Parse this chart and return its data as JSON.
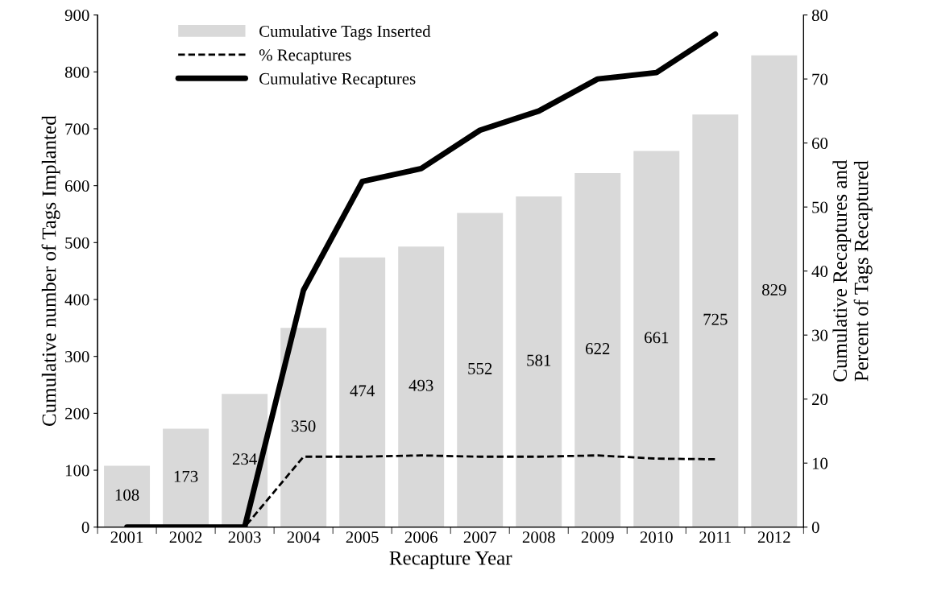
{
  "chart_data": {
    "type": "bar",
    "xlabel": "Recapture Year",
    "ylabel": "Cumulative number of Tags Implanted",
    "y2label": "Cumulative Recaptures and\nPercent of Tags Recaptured",
    "categories": [
      "2001",
      "2002",
      "2003",
      "2004",
      "2005",
      "2006",
      "2007",
      "2008",
      "2009",
      "2010",
      "2011",
      "2012"
    ],
    "series": [
      {
        "name": "Cumulative Tags Inserted",
        "color": "#d9d9d9",
        "values": [
          108,
          173,
          234,
          350,
          474,
          493,
          552,
          581,
          622,
          661,
          725,
          829
        ],
        "value_labels": [
          "108",
          "173",
          "234",
          "350",
          "474",
          "493",
          "552",
          "581",
          "622",
          "661",
          "725",
          "829"
        ]
      },
      {
        "name": "% Recaptures",
        "type": "line",
        "axis": "y2",
        "line_style": "dashed",
        "color": "#000000",
        "values": [
          0,
          0,
          0,
          11,
          11,
          11.2,
          11,
          11,
          11.2,
          10.7,
          10.6,
          null
        ]
      },
      {
        "name": "Cumulative Recaptures",
        "type": "line",
        "axis": "y2",
        "line_style": "solid",
        "color": "#000000",
        "values": [
          0,
          0,
          0,
          37,
          54,
          56,
          62,
          65,
          70,
          71,
          77,
          null
        ]
      }
    ],
    "ylim": [
      0,
      900
    ],
    "yticks": [
      0,
      100,
      200,
      300,
      400,
      500,
      600,
      700,
      800,
      900
    ],
    "y2lim": [
      0,
      80
    ],
    "y2ticks": [
      0,
      10,
      20,
      30,
      40,
      50,
      60,
      70,
      80
    ],
    "grid": false,
    "legend": "top left"
  }
}
